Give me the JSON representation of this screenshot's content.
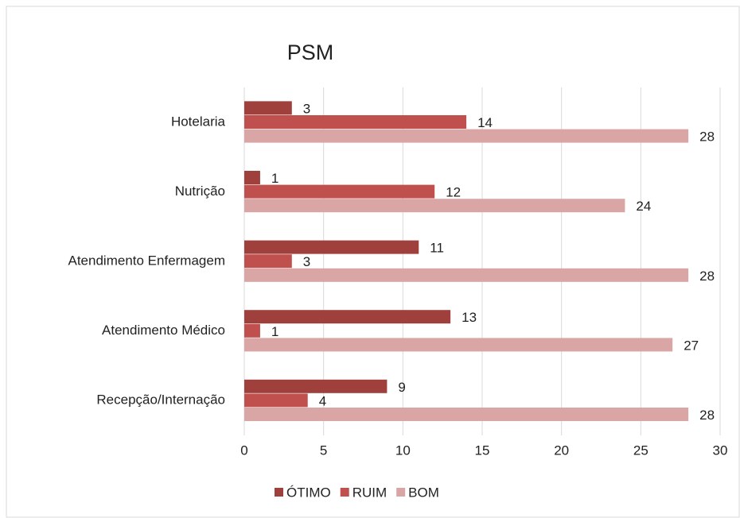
{
  "chart_data": {
    "type": "bar",
    "orientation": "horizontal",
    "title": "PSM",
    "categories": [
      "Hotelaria",
      "Nutrição",
      "Atendimento Enfermagem",
      "Atendimento Médico",
      "Recepção/Internação"
    ],
    "series": [
      {
        "name": "ÓTIMO",
        "color": "#a0403c",
        "values": [
          3,
          1,
          11,
          13,
          9
        ]
      },
      {
        "name": "RUIM",
        "color": "#c0504d",
        "values": [
          14,
          12,
          3,
          1,
          4
        ]
      },
      {
        "name": "BOM",
        "color": "#d9a6a5",
        "values": [
          28,
          24,
          28,
          27,
          28
        ]
      }
    ],
    "xlim": [
      0,
      30
    ],
    "xticks": [
      0,
      5,
      10,
      15,
      20,
      25,
      30
    ],
    "grid": true,
    "legend": "bottom"
  }
}
